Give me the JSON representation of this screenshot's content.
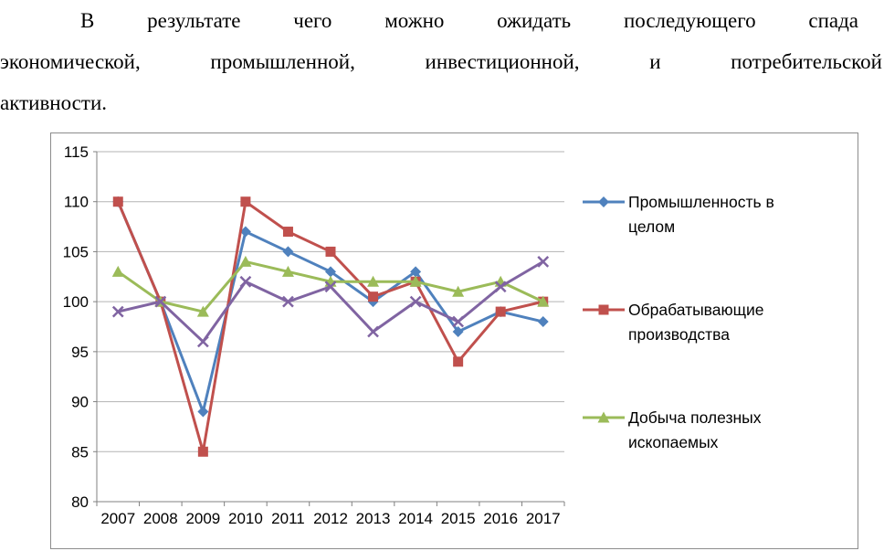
{
  "document": {
    "lines": [
      "В результате чего можно ожидать последующего спада",
      "экономической, промышленной, инвестиционной, и потребительской",
      "активности."
    ]
  },
  "chart_data": {
    "type": "line",
    "x": [
      "2007",
      "2008",
      "2009",
      "2010",
      "2011",
      "2012",
      "2013",
      "2014",
      "2015",
      "2016",
      "2017"
    ],
    "ylim": [
      80,
      115
    ],
    "ytick_step": 5,
    "grid": true,
    "legend_position": "right",
    "axis_color": "#808080",
    "gridline_color": "#b3b3b3",
    "series": [
      {
        "key": "industry-total",
        "legend_label": "Промышленность в целом",
        "color": "#4f81bd",
        "marker": "diamond",
        "values": [
          110,
          100,
          89,
          107,
          105,
          103,
          100,
          103,
          97,
          99,
          98
        ]
      },
      {
        "key": "manufacturing",
        "legend_label": "Обрабатывающие производства",
        "color": "#c0504d",
        "marker": "square",
        "values": [
          110,
          100,
          85,
          110,
          107,
          105,
          100.5,
          102,
          94,
          99,
          100
        ]
      },
      {
        "key": "mining",
        "legend_label": "Добыча полезных ископаемых",
        "color": "#9bbb59",
        "marker": "triangle",
        "values": [
          103,
          100,
          99,
          104,
          103,
          102,
          102,
          102,
          101,
          102,
          100
        ]
      },
      {
        "key": "series-4",
        "legend_label": null,
        "color": "#8064a2",
        "marker": "x",
        "values": [
          99,
          100,
          96,
          102,
          100,
          101.5,
          97,
          100,
          98,
          101.5,
          104
        ]
      }
    ]
  }
}
